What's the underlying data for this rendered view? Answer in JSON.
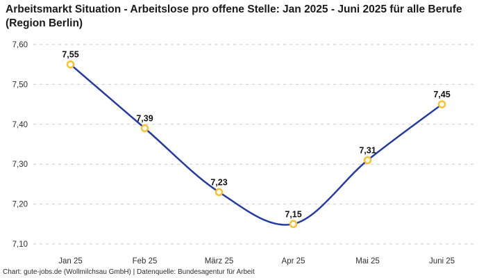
{
  "title": "Arbeitsmarkt Situation - Arbeitslose pro offene Stelle: Jan 2025 - Juni 2025 für alle Berufe (Region Berlin)",
  "footer": "Chart: gute-jobs.de (Wollmilchsau GmbH) | Datenquelle: Bundesagentur für Arbeit",
  "colors": {
    "line": "#243aa5",
    "marker_stroke": "#fcbf2d",
    "marker_fill": "#ffffff",
    "grid": "#c9c9c9",
    "title_text": "#1a1a1a",
    "axis_text": "#2e2e2e",
    "data_label_text": "#111111",
    "footer_text": "#2b2b2b",
    "background": "#ffffff"
  },
  "chart_data": {
    "type": "line",
    "title": "Arbeitsmarkt Situation - Arbeitslose pro offene Stelle: Jan 2025 - Juni 2025 für alle Berufe (Region Berlin)",
    "categories": [
      "Jan 25",
      "Feb 25",
      "März 25",
      "Apr 25",
      "Mai 25",
      "Juni 25"
    ],
    "values": [
      7.55,
      7.39,
      7.23,
      7.15,
      7.31,
      7.45
    ],
    "value_labels": [
      "7,55",
      "7,39",
      "7,23",
      "7,15",
      "7,31",
      "7,45"
    ],
    "xlabel": "",
    "ylabel": "",
    "ylim": [
      7.1,
      7.6
    ],
    "yticks": [
      7.1,
      7.2,
      7.3,
      7.4,
      7.5,
      7.6
    ],
    "ytick_labels": [
      "7,10",
      "7,20",
      "7,30",
      "7,40",
      "7,50",
      "7,60"
    ],
    "grid": "horizontal dashed",
    "legend": "none",
    "line_style": "smooth spline",
    "marker": "open-circle"
  }
}
